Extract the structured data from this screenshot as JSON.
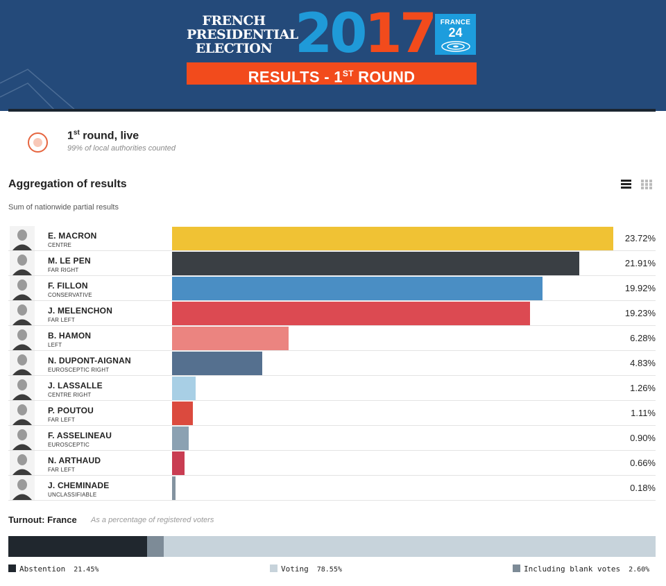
{
  "header": {
    "title_lines": [
      "FRENCH",
      "PRESIDENTIAL",
      "ELECTION"
    ],
    "year_a": "20",
    "year_b": "17",
    "logo_top": "FRANCE",
    "logo_bottom": "24",
    "results_prefix": "RESULTS - 1",
    "results_sup": "ST",
    "results_suffix": " ROUND",
    "colors": {
      "navy": "#244a7a",
      "blue": "#1f9ad8",
      "orange": "#f24b1c"
    }
  },
  "status": {
    "prefix": "1",
    "sup": "st",
    "suffix": " round, live",
    "subtitle": "99% of local authorities counted"
  },
  "section": {
    "title": "Aggregation of results",
    "subtitle": "Sum of nationwide partial results",
    "view_icons": [
      "list-view-icon",
      "grid-view-icon"
    ]
  },
  "chart_data": {
    "type": "bar",
    "orientation": "horizontal",
    "xlim": [
      0,
      23.72
    ],
    "categories": [
      "E. MACRON",
      "M. LE PEN",
      "F. FILLON",
      "J. MELENCHON",
      "B. HAMON",
      "N. DUPONT-AIGNAN",
      "J. LASSALLE",
      "P. POUTOU",
      "F. ASSELINEAU",
      "N. ARTHAUD",
      "J. CHEMINADE"
    ],
    "parties": [
      "CENTRE",
      "FAR RIGHT",
      "CONSERVATIVE",
      "FAR LEFT",
      "LEFT",
      "EUROSCEPTIC RIGHT",
      "CENTRE RIGHT",
      "FAR LEFT",
      "EUROSCEPTIC",
      "FAR LEFT",
      "UNCLASSIFIABLE"
    ],
    "values": [
      23.72,
      21.91,
      19.92,
      19.23,
      6.28,
      4.83,
      1.26,
      1.11,
      0.9,
      0.66,
      0.18
    ],
    "labels": [
      "23.72%",
      "21.91%",
      "19.92%",
      "19.23%",
      "6.28%",
      "4.83%",
      "1.26%",
      "1.11%",
      "0.90%",
      "0.66%",
      "0.18%"
    ],
    "colors": [
      "#f0c234",
      "#3a3f44",
      "#4a8ec4",
      "#dc4a52",
      "#eb8480",
      "#55708f",
      "#a8cfe5",
      "#db4a3e",
      "#8ba1b2",
      "#c93d52",
      "#8393a0"
    ],
    "grid": false,
    "legend": "none"
  },
  "turnout": {
    "title": "Turnout: France",
    "subtitle": "As a percentage of registered voters",
    "abstention": {
      "label": "Abstention",
      "value_text": "21.45%",
      "value": 21.45,
      "color": "#20272e"
    },
    "voting": {
      "label": "Voting",
      "value_text": "78.55%",
      "value": 78.55,
      "color": "#c7d3db"
    },
    "blank": {
      "label": "Including blank votes",
      "value_text": "2.60%",
      "value": 2.6,
      "color": "#7d8b97"
    }
  }
}
